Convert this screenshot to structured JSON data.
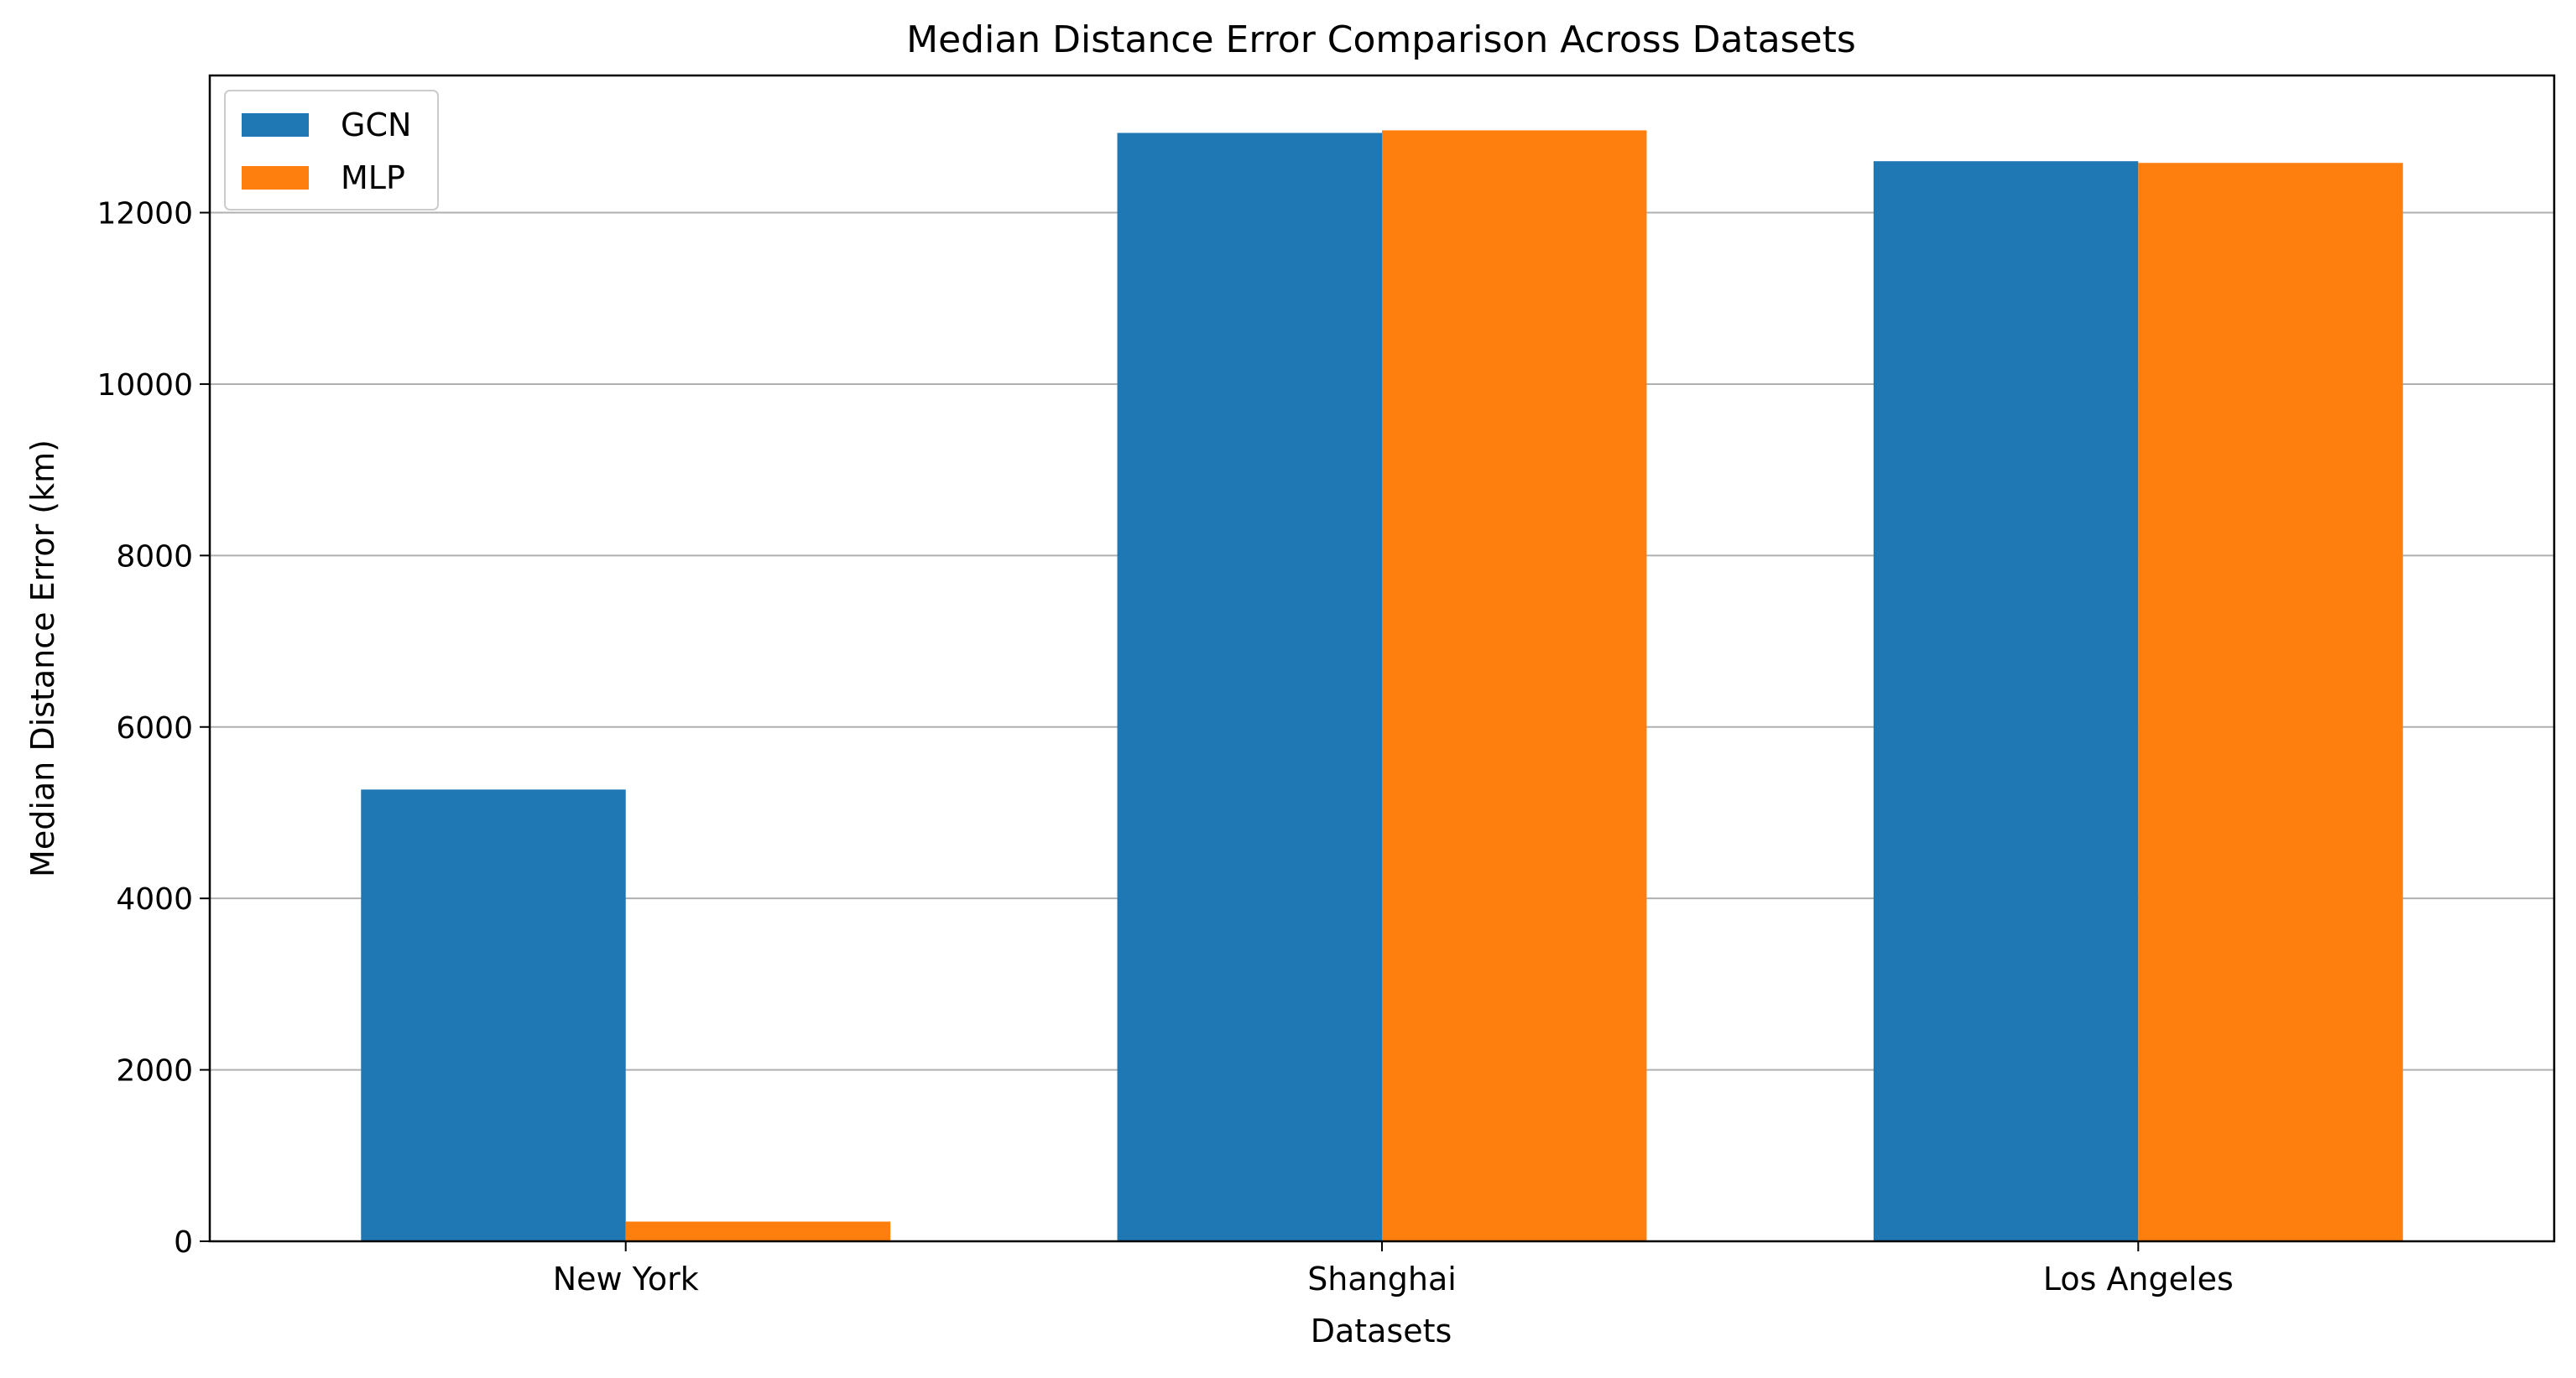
{
  "chart_data": {
    "type": "bar",
    "title": "Median Distance Error Comparison Across Datasets",
    "xlabel": "Datasets",
    "ylabel": "Median Distance Error (km)",
    "categories": [
      "New York",
      "Shanghai",
      "Los Angeles"
    ],
    "series": [
      {
        "name": "GCN",
        "color": "#1f77b4",
        "values": [
          5270,
          12930,
          12600
        ]
      },
      {
        "name": "MLP",
        "color": "#ff7f0e",
        "values": [
          230,
          12960,
          12580
        ]
      }
    ],
    "ylim": [
      0,
      13600
    ],
    "yticks": [
      0,
      2000,
      4000,
      6000,
      8000,
      10000,
      12000
    ],
    "ytick_labels": [
      "0",
      "2000",
      "4000",
      "6000",
      "8000",
      "10000",
      "12000"
    ],
    "grid": "horizontal",
    "legend_position": "top-left"
  }
}
